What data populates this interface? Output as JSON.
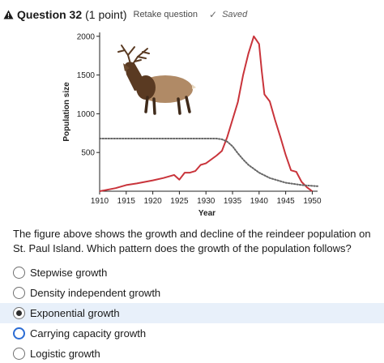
{
  "header": {
    "title": "Question 32",
    "points": "(1 point)",
    "retake": "Retake question",
    "saved": "Saved",
    "warning_icon": "warning-triangle-icon",
    "check_icon": "checkmark-icon"
  },
  "figure": {
    "image": "reindeer-illustration",
    "ylabel": "Population size",
    "xlabel": "Year",
    "x_ticks": [
      "1910",
      "1915",
      "1920",
      "1925",
      "1930",
      "1935",
      "1940",
      "1945",
      "1950"
    ],
    "y_ticks": [
      "500",
      "1000",
      "1500",
      "2000"
    ],
    "line_color": "#c9343b",
    "dotted_color": "#666666"
  },
  "chart_data": {
    "type": "line",
    "xlabel": "Year",
    "ylabel": "Population size",
    "xlim": [
      1910,
      1951
    ],
    "ylim": [
      0,
      2050
    ],
    "series": [
      {
        "style": "solid-red",
        "x": [
          1910,
          1913,
          1915,
          1917,
          1920,
          1922,
          1924,
          1925,
          1926,
          1927,
          1928,
          1929,
          1930,
          1932,
          1933,
          1934,
          1936,
          1937,
          1938,
          1939,
          1940,
          1940.5,
          1941,
          1942,
          1943,
          1944,
          1945,
          1946,
          1947,
          1948,
          1949,
          1950
        ],
        "values": [
          0,
          40,
          80,
          100,
          140,
          170,
          210,
          150,
          240,
          240,
          260,
          340,
          360,
          460,
          520,
          700,
          1150,
          1500,
          1780,
          2000,
          1900,
          1550,
          1250,
          1160,
          920,
          700,
          470,
          270,
          250,
          120,
          50,
          0
        ]
      },
      {
        "style": "dotted-gray",
        "x": [
          1910,
          1920,
          1930,
          1932,
          1933,
          1934,
          1935,
          1936,
          1937,
          1938,
          1940,
          1942,
          1945,
          1948,
          1951
        ],
        "values": [
          680,
          680,
          680,
          680,
          670,
          640,
          580,
          490,
          410,
          340,
          240,
          170,
          110,
          80,
          65
        ]
      }
    ]
  },
  "question": {
    "text": "The figure above shows the growth and decline of the reindeer population on St. Paul Island. Which pattern does the growth of the population follows?"
  },
  "options": [
    {
      "label": "Stepwise growth",
      "checked": false,
      "focused": false,
      "selected": false
    },
    {
      "label": "Density independent growth",
      "checked": false,
      "focused": false,
      "selected": false
    },
    {
      "label": "Exponential growth",
      "checked": true,
      "focused": false,
      "selected": true
    },
    {
      "label": "Carrying capacity growth",
      "checked": false,
      "focused": true,
      "selected": false
    },
    {
      "label": "Logistic growth",
      "checked": false,
      "focused": false,
      "selected": false
    }
  ]
}
